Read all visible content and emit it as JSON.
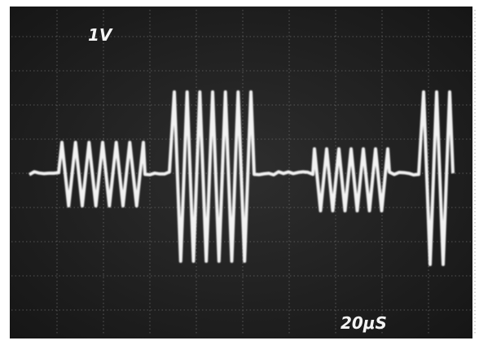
{
  "screen": {
    "volts_label": "1V",
    "time_label": "20μS"
  }
}
